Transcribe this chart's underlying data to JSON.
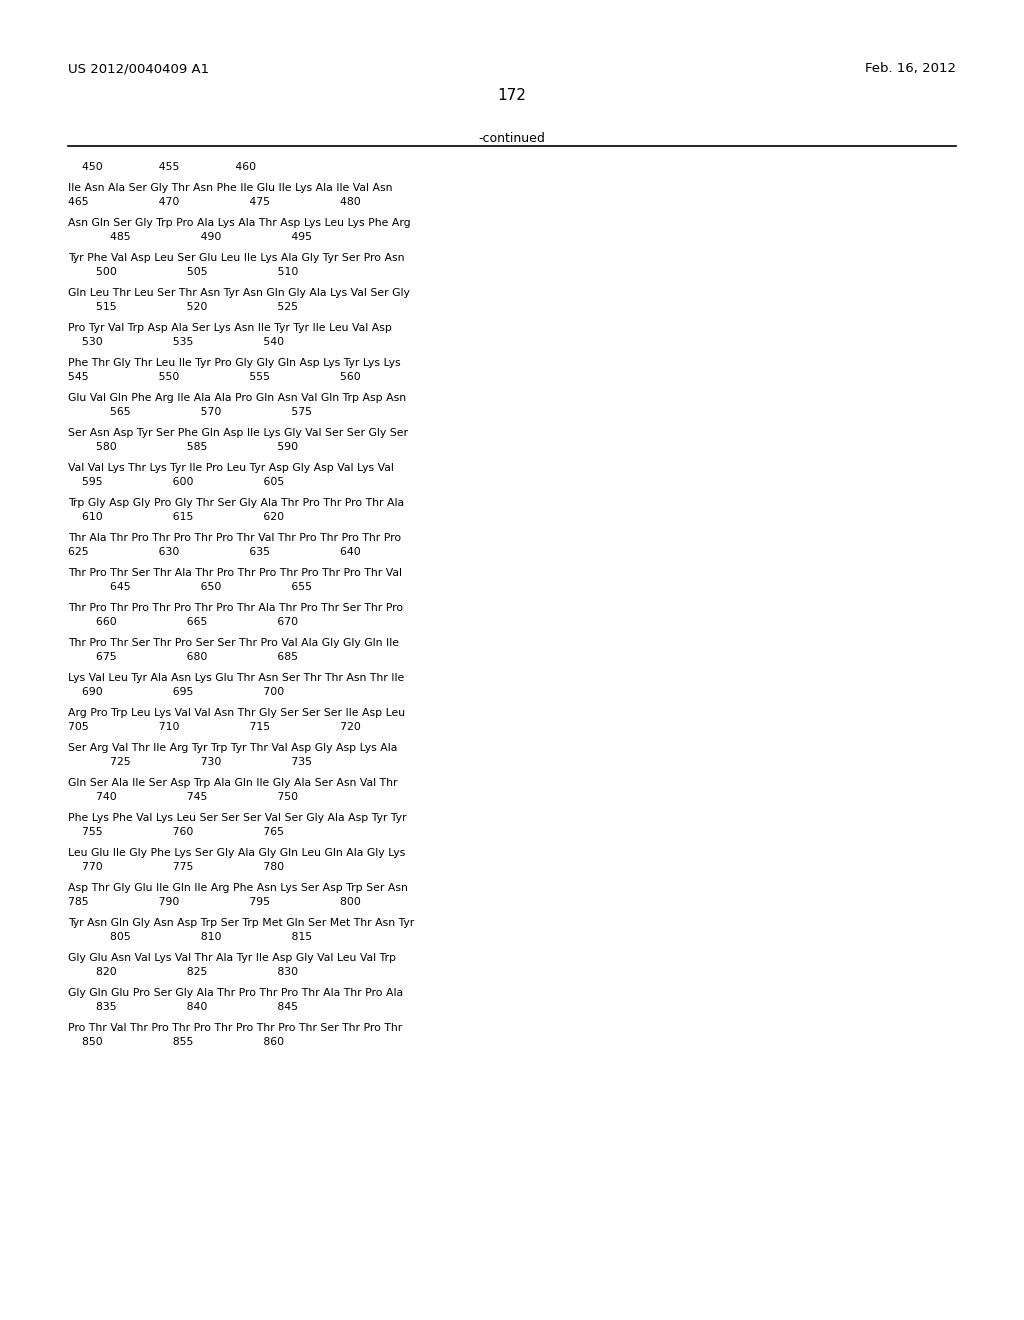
{
  "header_left": "US 2012/0040409 A1",
  "header_right": "Feb. 16, 2012",
  "page_number": "172",
  "continued_label": "-continued",
  "blocks": [
    [
      "Ile Asn Ala Ser Gly Thr Asn Phe Ile Glu Ile Lys Ala Ile Val Asn",
      "465                    470                    475                    480"
    ],
    [
      "Asn Gln Ser Gly Trp Pro Ala Lys Ala Thr Asp Lys Leu Lys Phe Arg",
      "            485                    490                    495"
    ],
    [
      "Tyr Phe Val Asp Leu Ser Glu Leu Ile Lys Ala Gly Tyr Ser Pro Asn",
      "        500                    505                    510"
    ],
    [
      "Gln Leu Thr Leu Ser Thr Asn Tyr Asn Gln Gly Ala Lys Val Ser Gly",
      "        515                    520                    525"
    ],
    [
      "Pro Tyr Val Trp Asp Ala Ser Lys Asn Ile Tyr Tyr Ile Leu Val Asp",
      "    530                    535                    540"
    ],
    [
      "Phe Thr Gly Thr Leu Ile Tyr Pro Gly Gly Gln Asp Lys Tyr Lys Lys",
      "545                    550                    555                    560"
    ],
    [
      "Glu Val Gln Phe Arg Ile Ala Ala Pro Gln Asn Val Gln Trp Asp Asn",
      "            565                    570                    575"
    ],
    [
      "Ser Asn Asp Tyr Ser Phe Gln Asp Ile Lys Gly Val Ser Ser Gly Ser",
      "        580                    585                    590"
    ],
    [
      "Val Val Lys Thr Lys Tyr Ile Pro Leu Tyr Asp Gly Asp Val Lys Val",
      "    595                    600                    605"
    ],
    [
      "Trp Gly Asp Gly Pro Gly Thr Ser Gly Ala Thr Pro Thr Pro Thr Ala",
      "    610                    615                    620"
    ],
    [
      "Thr Ala Thr Pro Thr Pro Thr Pro Thr Val Thr Pro Thr Pro Thr Pro",
      "625                    630                    635                    640"
    ],
    [
      "Thr Pro Thr Ser Thr Ala Thr Pro Thr Pro Thr Pro Thr Pro Thr Val",
      "            645                    650                    655"
    ],
    [
      "Thr Pro Thr Pro Thr Pro Thr Pro Thr Ala Thr Pro Thr Ser Thr Pro",
      "        660                    665                    670"
    ],
    [
      "Thr Pro Thr Ser Thr Pro Ser Ser Thr Pro Val Ala Gly Gly Gln Ile",
      "        675                    680                    685"
    ],
    [
      "Lys Val Leu Tyr Ala Asn Lys Glu Thr Asn Ser Thr Thr Asn Thr Ile",
      "    690                    695                    700"
    ],
    [
      "Arg Pro Trp Leu Lys Val Val Asn Thr Gly Ser Ser Ser Ile Asp Leu",
      "705                    710                    715                    720"
    ],
    [
      "Ser Arg Val Thr Ile Arg Tyr Trp Tyr Thr Val Asp Gly Asp Lys Ala",
      "            725                    730                    735"
    ],
    [
      "Gln Ser Ala Ile Ser Asp Trp Ala Gln Ile Gly Ala Ser Asn Val Thr",
      "        740                    745                    750"
    ],
    [
      "Phe Lys Phe Val Lys Leu Ser Ser Ser Val Ser Gly Ala Asp Tyr Tyr",
      "    755                    760                    765"
    ],
    [
      "Leu Glu Ile Gly Phe Lys Ser Gly Ala Gly Gln Leu Gln Ala Gly Lys",
      "    770                    775                    780"
    ],
    [
      "Asp Thr Gly Glu Ile Gln Ile Arg Phe Asn Lys Ser Asp Trp Ser Asn",
      "785                    790                    795                    800"
    ],
    [
      "Tyr Asn Gln Gly Asn Asp Trp Ser Trp Met Gln Ser Met Thr Asn Tyr",
      "            805                    810                    815"
    ],
    [
      "Gly Glu Asn Val Lys Val Thr Ala Tyr Ile Asp Gly Val Leu Val Trp",
      "        820                    825                    830"
    ],
    [
      "Gly Gln Glu Pro Ser Gly Ala Thr Pro Thr Pro Thr Ala Thr Pro Ala",
      "        835                    840                    845"
    ],
    [
      "Pro Thr Val Thr Pro Thr Pro Thr Pro Thr Pro Thr Ser Thr Pro Thr",
      "    850                    855                    860"
    ]
  ],
  "first_num_line": "    450                455                460"
}
